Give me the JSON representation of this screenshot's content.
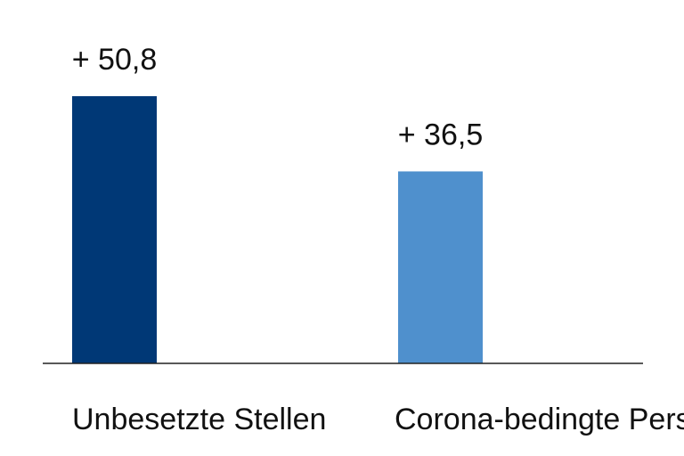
{
  "chart_data": {
    "type": "bar",
    "categories": [
      "Unbesetzte Stellen",
      "Corona-bedingte Personalausfälle"
    ],
    "values": [
      50.8,
      36.5
    ],
    "value_labels": [
      "+ 50,8",
      "+ 36,5"
    ],
    "colors": [
      "#003876",
      "#4f90cd"
    ],
    "title": "",
    "xlabel": "",
    "ylabel": "",
    "ylim": [
      0,
      50.8
    ],
    "grid": false,
    "legend": "none"
  }
}
